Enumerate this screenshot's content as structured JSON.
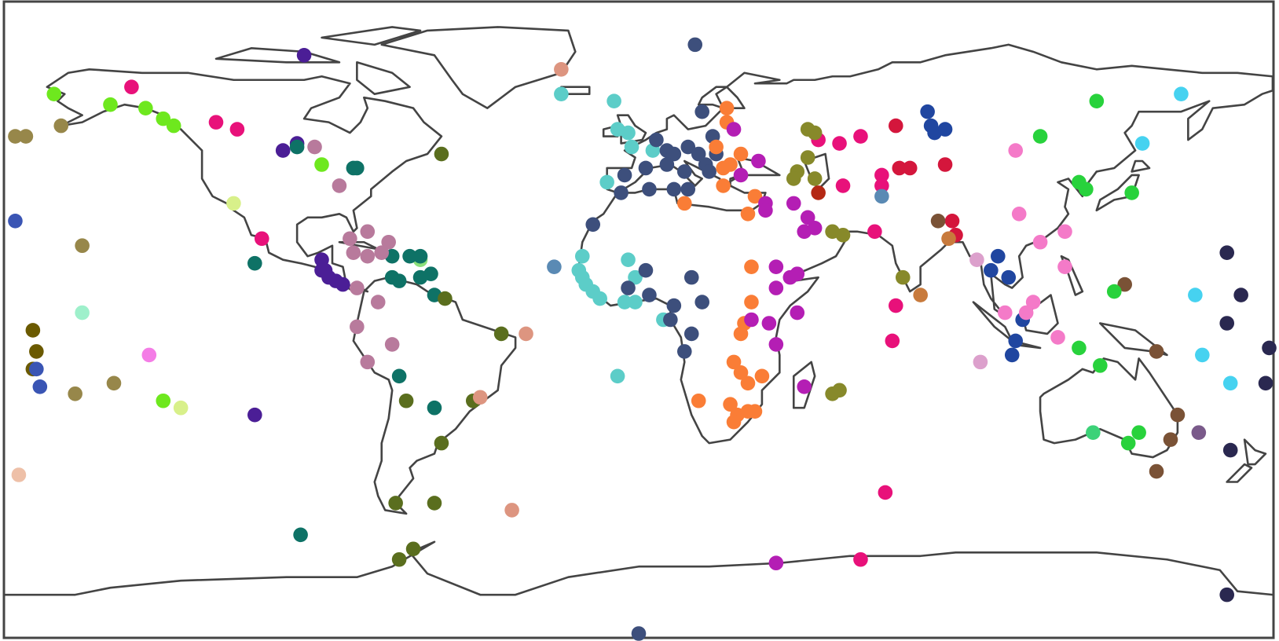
{
  "chart_data": {
    "type": "scatter",
    "xlim": [
      -180,
      180
    ],
    "ylim": [
      -90,
      90
    ],
    "groups": [
      {
        "color": "#6ee81e",
        "x": [
          -166,
          -150,
          -140,
          -135,
          -132,
          -90,
          -135
        ],
        "y": [
          64,
          61,
          60,
          57,
          55,
          44,
          -23
        ]
      },
      {
        "color": "#8be07a",
        "x": [
          -62
        ],
        "y": [
          17
        ]
      },
      {
        "color": "#e8117a",
        "x": [
          -144,
          -120,
          -114,
          -107,
          51,
          57,
          63,
          58,
          69,
          69,
          67,
          73,
          72,
          70,
          63
        ],
        "y": [
          66,
          56,
          54,
          23,
          51,
          50,
          52,
          38,
          41,
          38,
          25,
          4,
          -6,
          -49,
          -68
        ]
      },
      {
        "color": "#d4163c",
        "x": [
          73,
          74,
          77,
          87,
          89,
          90
        ],
        "y": [
          55,
          43,
          43,
          44,
          28,
          24
        ]
      },
      {
        "color": "#97874a",
        "x": [
          -177,
          -174,
          -164,
          -158,
          -160,
          -149
        ],
        "y": [
          52,
          52,
          55,
          21,
          -21,
          -18
        ]
      },
      {
        "color": "#6b5a00",
        "x": [
          -172,
          -171,
          -172
        ],
        "y": [
          -3,
          -9,
          -14
        ]
      },
      {
        "color": "#3a55b4",
        "x": [
          -177,
          -171,
          -170
        ],
        "y": [
          28,
          -14,
          -19
        ]
      },
      {
        "color": "#9ef0cb",
        "x": [
          -158
        ],
        "y": [
          2
        ]
      },
      {
        "color": "#f47de6",
        "x": [
          -139
        ],
        "y": [
          -10
        ]
      },
      {
        "color": "#d8f08a",
        "x": [
          -130,
          -115
        ],
        "y": [
          -25,
          33
        ]
      },
      {
        "color": "#4b1e96",
        "x": [
          -95,
          -109,
          -101,
          -97,
          -90,
          -90,
          -89,
          -88,
          -86,
          -84
        ],
        "y": [
          75,
          -27,
          48,
          50,
          14,
          17,
          14,
          12,
          11,
          10
        ]
      },
      {
        "color": "#0e7266",
        "x": [
          -97,
          -81,
          -80,
          -109,
          -70,
          -65,
          -62,
          -70,
          -68,
          -62,
          -59,
          -58,
          -68,
          -58,
          -96
        ],
        "y": [
          49,
          43,
          43,
          16,
          18,
          18,
          18,
          12,
          11,
          12,
          13,
          7,
          -16,
          -25,
          -61
        ]
      },
      {
        "color": "#b87a9c",
        "x": [
          -92,
          -85,
          -77,
          -82,
          -81,
          -77,
          -73,
          -71,
          -80,
          -74,
          -80,
          -70,
          -77
        ],
        "y": [
          49,
          38,
          25,
          23,
          19,
          18,
          19,
          22,
          9,
          5,
          -2,
          -7,
          -12
        ]
      },
      {
        "color": "#5a6e1e",
        "x": [
          -56,
          -55,
          -39,
          -66,
          -47,
          -56,
          -69,
          -58,
          -68,
          -64
        ],
        "y": [
          47,
          6,
          -4,
          -23,
          -23,
          -35,
          -52,
          -52,
          -68,
          -65
        ]
      },
      {
        "color": "#dd9580",
        "x": [
          -22,
          -32,
          -45,
          -36
        ],
        "y": [
          71,
          -4,
          -22,
          -54
        ]
      },
      {
        "color": "#eec0a8",
        "x": [
          -176
        ],
        "y": [
          -44
        ]
      },
      {
        "color": "#5ccdc8",
        "x": [
          -22,
          -7,
          -6,
          -3,
          -2,
          4,
          -9,
          -16,
          -17,
          -16,
          -15,
          -13,
          -11,
          -3,
          -1,
          -4,
          -1,
          7,
          -6
        ],
        "y": [
          64,
          62,
          54,
          53,
          49,
          48,
          39,
          18,
          14,
          12,
          10,
          8,
          6,
          17,
          12,
          5,
          5,
          0,
          -16
        ]
      },
      {
        "color": "#5a8ab4",
        "x": [
          -24,
          69
        ],
        "y": [
          15,
          35
        ]
      },
      {
        "color": "#3d4f7c",
        "x": [
          16,
          18,
          5,
          8,
          10,
          14,
          17,
          19,
          22,
          21,
          2,
          -4,
          -5,
          3,
          10,
          14,
          13,
          8,
          20,
          -13,
          2,
          -3,
          3,
          10,
          15,
          18,
          9,
          15,
          13,
          0
        ],
        "y": [
          78,
          59,
          51,
          48,
          47,
          49,
          47,
          44,
          47,
          52,
          43,
          41,
          36,
          37,
          37,
          37,
          42,
          44,
          42,
          27,
          14,
          9,
          7,
          4,
          12,
          5,
          0,
          -4,
          -9,
          -89
        ]
      },
      {
        "color": "#fa7d36",
        "x": [
          25,
          25,
          22,
          29,
          26,
          24,
          24,
          13,
          33,
          31,
          32,
          32,
          30,
          29,
          27,
          29,
          31,
          35,
          17,
          26,
          28,
          27,
          31,
          33
        ],
        "y": [
          60,
          56,
          49,
          47,
          44,
          43,
          38,
          33,
          35,
          30,
          15,
          5,
          -1,
          -4,
          -12,
          -15,
          -18,
          -16,
          -23,
          -24,
          -27,
          -29,
          -26,
          -26
        ]
      },
      {
        "color": "#b41eb4",
        "x": [
          27,
          29,
          34,
          36,
          36,
          44,
          48,
          50,
          47,
          39,
          39,
          43,
          45,
          37,
          32,
          45,
          39,
          47,
          39
        ],
        "y": [
          54,
          41,
          45,
          33,
          31,
          33,
          29,
          26,
          25,
          9,
          15,
          12,
          13,
          -1,
          0,
          2,
          -7,
          -19,
          -69
        ]
      },
      {
        "color": "#87892a",
        "x": [
          48,
          50,
          48,
          45,
          44,
          50,
          55,
          58,
          55,
          57,
          75
        ],
        "y": [
          54,
          53,
          46,
          42,
          40,
          40,
          25,
          24,
          -21,
          -20,
          12
        ]
      },
      {
        "color": "#b42814",
        "x": [
          51
        ],
        "y": [
          36
        ]
      },
      {
        "color": "#7a5236",
        "x": [
          85,
          138,
          147,
          153,
          151,
          147
        ],
        "y": [
          28,
          10,
          -9,
          -27,
          -34,
          -43
        ]
      },
      {
        "color": "#c87a3c",
        "x": [
          88,
          80
        ],
        "y": [
          23,
          7
        ]
      },
      {
        "color": "#2046a0",
        "x": [
          82,
          83,
          84,
          87,
          102,
          100,
          105,
          109,
          107,
          106
        ],
        "y": [
          59,
          55,
          53,
          54,
          18,
          14,
          12,
          0,
          -6,
          -10
        ]
      },
      {
        "color": "#dca0cc",
        "x": [
          96,
          97
        ],
        "y": [
          17,
          -12
        ]
      },
      {
        "color": "#f47ac8",
        "x": [
          107,
          108,
          114,
          121,
          121,
          112,
          104,
          110,
          119
        ],
        "y": [
          48,
          30,
          22,
          25,
          15,
          5,
          2,
          2,
          -5
        ]
      },
      {
        "color": "#28d23c",
        "x": [
          130,
          114,
          125,
          127,
          140,
          135,
          125,
          131,
          142,
          139
        ],
        "y": [
          62,
          52,
          39,
          37,
          36,
          8,
          -8,
          -13,
          -32,
          -35
        ]
      },
      {
        "color": "#3cd278",
        "x": [
          129
        ],
        "y": [
          -32
        ]
      },
      {
        "color": "#46d2f0",
        "x": [
          154,
          143,
          158,
          160,
          168
        ],
        "y": [
          64,
          50,
          7,
          -10,
          -18
        ]
      },
      {
        "color": "#2a2850",
        "x": [
          167,
          171,
          167,
          179,
          178,
          168,
          167
        ],
        "y": [
          19,
          7,
          -1,
          -8,
          -18,
          -37,
          -78
        ]
      },
      {
        "color": "#7a5a8a",
        "x": [
          159
        ],
        "y": [
          -32
        ]
      }
    ]
  }
}
